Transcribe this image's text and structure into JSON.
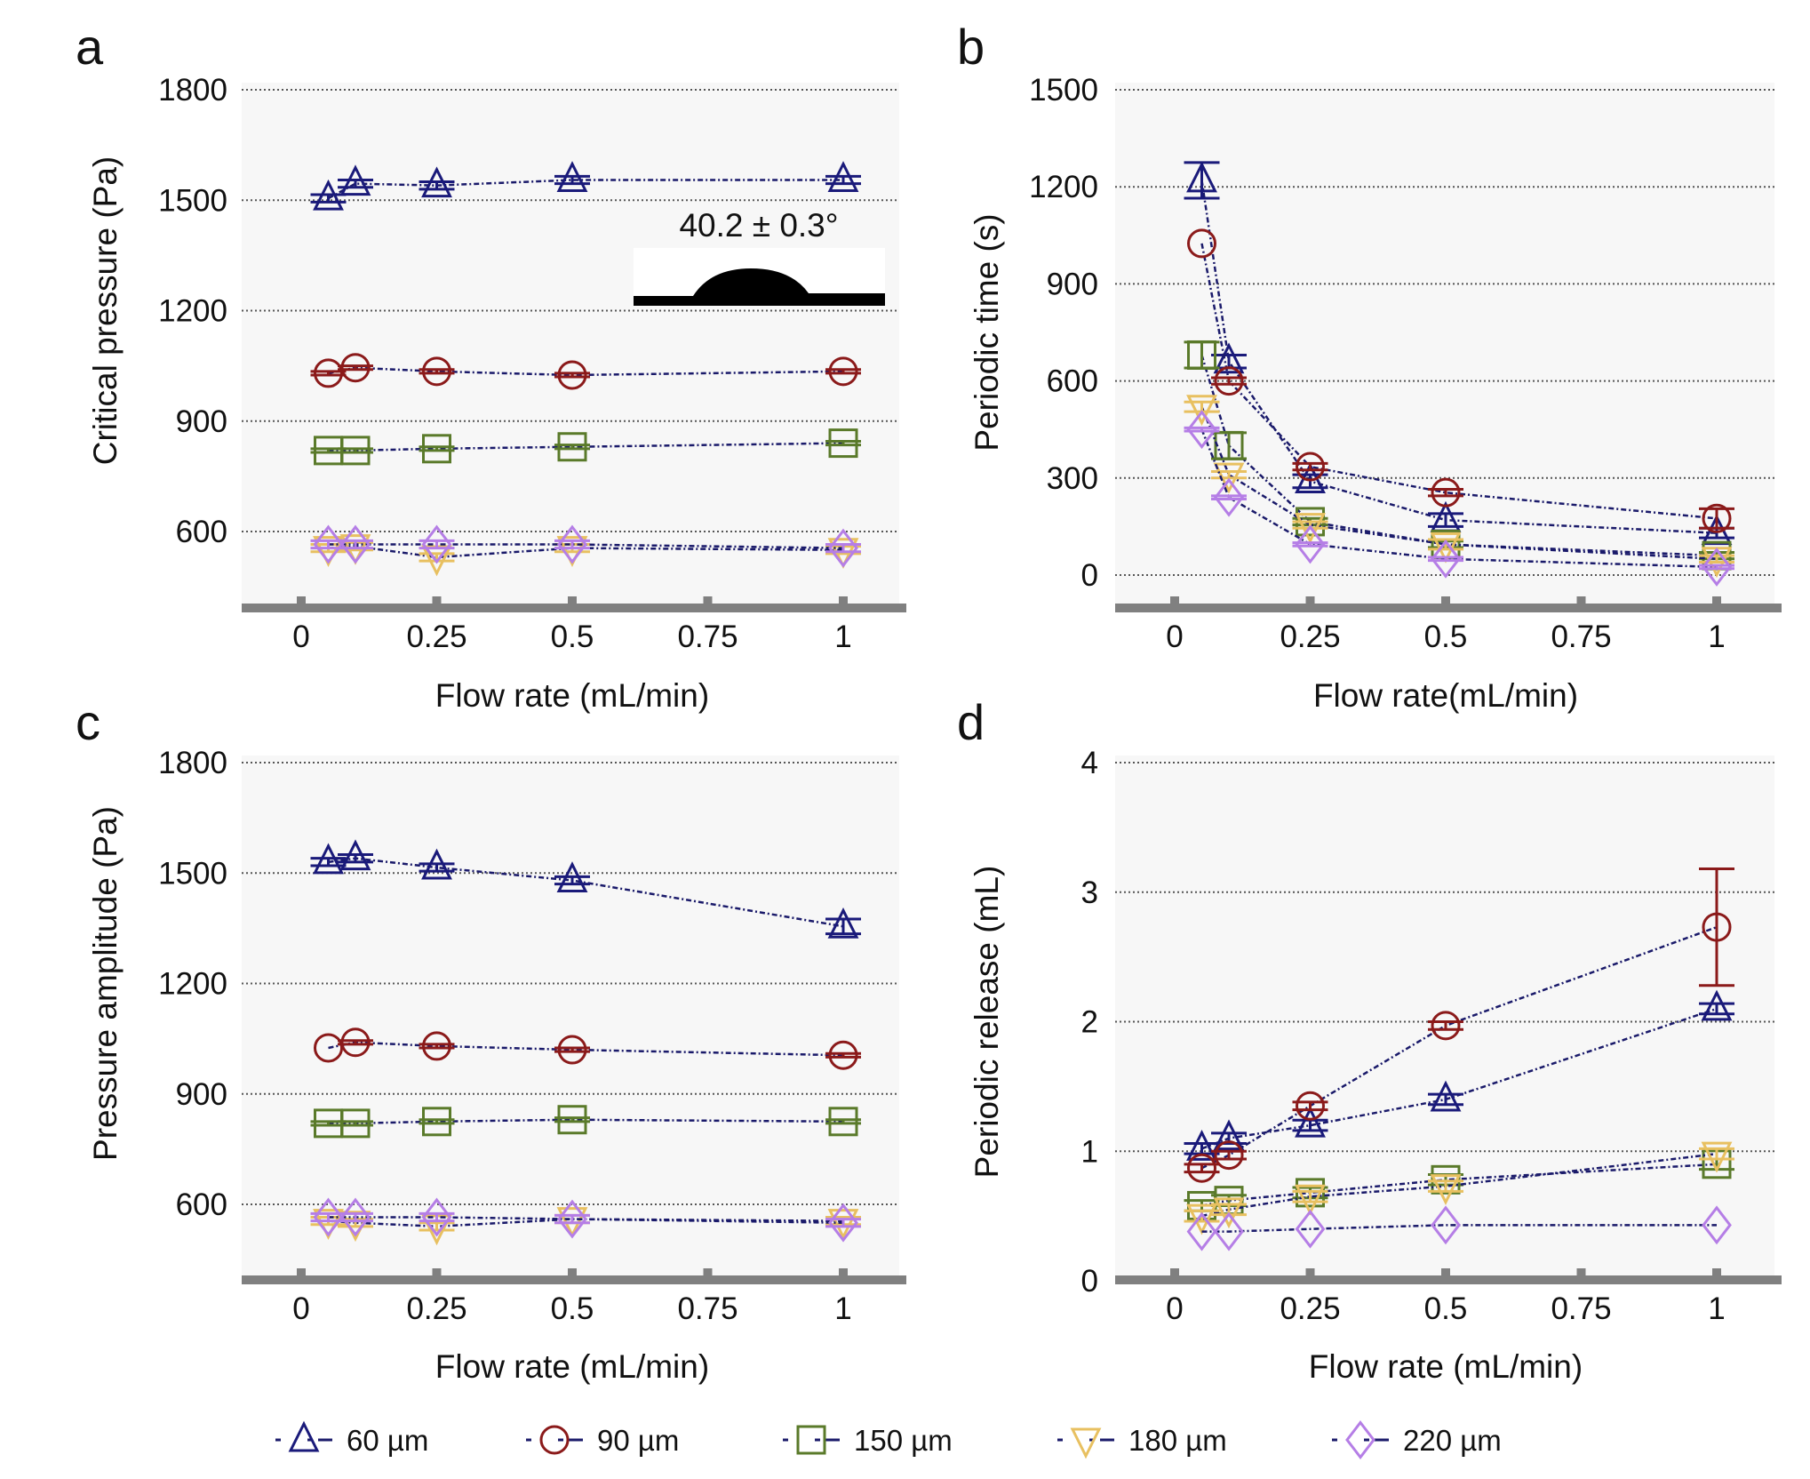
{
  "colors": {
    "60": "#1a1a7a",
    "90": "#8b1a1a",
    "150": "#5a7a2a",
    "180": "#e8c060",
    "220": "#b57ee6",
    "line": "#1a1a6a",
    "axis": "#808080",
    "plot_bg": "#f7f7f7"
  },
  "legend": [
    {
      "label": "60 µm",
      "marker": "triangle-up",
      "color": "#1a1a7a"
    },
    {
      "label": "90 µm",
      "marker": "circle",
      "color": "#8b1a1a"
    },
    {
      "label": "150 µm",
      "marker": "square",
      "color": "#5a7a2a"
    },
    {
      "label": "180 µm",
      "marker": "triangle-down",
      "color": "#e8c060"
    },
    {
      "label": "220 µm",
      "marker": "diamond",
      "color": "#b57ee6"
    }
  ],
  "chart_data": [
    {
      "panel": "a",
      "type": "line",
      "xlabel": "Flow rate (mL/min)",
      "ylabel": "Critical pressure (Pa)",
      "xticks": [
        "0",
        "0.25",
        "0.5",
        "0.75",
        "1"
      ],
      "xtick_values": [
        0,
        0.25,
        0.5,
        0.75,
        1
      ],
      "yticks": [
        "600",
        "900",
        "1200",
        "1500",
        "1800"
      ],
      "ytick_values": [
        600,
        900,
        1200,
        1500,
        1800
      ],
      "annotation": "40.2 ± 0.3°",
      "x": [
        0.05,
        0.1,
        0.25,
        0.5,
        1
      ],
      "series": [
        {
          "name": "60 µm",
          "values": [
            1505,
            1545,
            1540,
            1555,
            1555
          ],
          "err": [
            10,
            10,
            10,
            10,
            10
          ]
        },
        {
          "name": "90 µm",
          "values": [
            1030,
            1045,
            1035,
            1025,
            1035
          ],
          "err": [
            5,
            5,
            5,
            5,
            5
          ]
        },
        {
          "name": "150 µm",
          "values": [
            820,
            820,
            825,
            830,
            840
          ],
          "err": [
            5,
            5,
            5,
            5,
            5
          ]
        },
        {
          "name": "180 µm",
          "values": [
            555,
            560,
            530,
            555,
            550
          ],
          "err": [
            10,
            10,
            10,
            10,
            10
          ]
        },
        {
          "name": "220 µm",
          "values": [
            565,
            565,
            565,
            565,
            555
          ],
          "err": [
            10,
            10,
            10,
            10,
            10
          ]
        }
      ]
    },
    {
      "panel": "b",
      "type": "line",
      "xlabel": "Flow rate(mL/min)",
      "ylabel": "Periodic  time (s)",
      "xticks": [
        "0",
        "0.25",
        "0.5",
        "0.75",
        "1"
      ],
      "xtick_values": [
        0,
        0.25,
        0.5,
        0.75,
        1
      ],
      "yticks": [
        "0",
        "300",
        "600",
        "900",
        "1200",
        "1500"
      ],
      "ytick_values": [
        0,
        300,
        600,
        900,
        1200,
        1500
      ],
      "x": [
        0.05,
        0.1,
        0.25,
        0.5,
        1
      ],
      "series": [
        {
          "name": "60 µm",
          "values": [
            1220,
            660,
            290,
            170,
            130
          ],
          "err": [
            55,
            20,
            20,
            20,
            15
          ]
        },
        {
          "name": "90 µm",
          "values": [
            1025,
            600,
            335,
            255,
            175
          ],
          "err": [
            0,
            10,
            10,
            10,
            30
          ]
        },
        {
          "name": "150 µm",
          "values": [
            680,
            400,
            165,
            95,
            60
          ],
          "err": [
            40,
            40,
            10,
            10,
            10
          ]
        },
        {
          "name": "180 µm",
          "values": [
            520,
            310,
            155,
            95,
            50
          ],
          "err": [
            15,
            10,
            10,
            15,
            10
          ]
        },
        {
          "name": "220 µm",
          "values": [
            450,
            240,
            95,
            50,
            25
          ],
          "err": [
            5,
            5,
            5,
            5,
            5
          ]
        }
      ]
    },
    {
      "panel": "c",
      "type": "line",
      "xlabel": "Flow rate (mL/min)",
      "ylabel": "Pressure amplitude (Pa)",
      "xticks": [
        "0",
        "0.25",
        "0.5",
        "0.75",
        "1"
      ],
      "xtick_values": [
        0,
        0.25,
        0.5,
        0.75,
        1
      ],
      "yticks": [
        "600",
        "900",
        "1200",
        "1500",
        "1800"
      ],
      "ytick_values": [
        600,
        900,
        1200,
        1500,
        1800
      ],
      "x": [
        0.05,
        0.1,
        0.25,
        0.5,
        1
      ],
      "series": [
        {
          "name": "60 µm",
          "values": [
            1530,
            1540,
            1515,
            1480,
            1355
          ],
          "err": [
            10,
            10,
            10,
            10,
            20
          ]
        },
        {
          "name": "90 µm",
          "values": [
            1025,
            1040,
            1030,
            1020,
            1005
          ],
          "err": [
            0,
            5,
            5,
            5,
            5
          ]
        },
        {
          "name": "150 µm",
          "values": [
            820,
            820,
            825,
            830,
            825
          ],
          "err": [
            5,
            5,
            5,
            5,
            5
          ]
        },
        {
          "name": "180 µm",
          "values": [
            555,
            550,
            540,
            560,
            555
          ],
          "err": [
            10,
            10,
            10,
            10,
            10
          ]
        },
        {
          "name": "220 µm",
          "values": [
            565,
            565,
            565,
            560,
            550
          ],
          "err": [
            10,
            10,
            10,
            10,
            10
          ]
        }
      ]
    },
    {
      "panel": "d",
      "type": "line",
      "xlabel": "Flow rate (mL/min)",
      "ylabel": "Periodic release (mL)",
      "xticks": [
        "0",
        "0.25",
        "0.5",
        "0.75",
        "1"
      ],
      "xtick_values": [
        0,
        0.25,
        0.5,
        0.75,
        1
      ],
      "yticks": [
        "0",
        "1",
        "2",
        "3",
        "4"
      ],
      "ytick_values": [
        0,
        1,
        2,
        3,
        4
      ],
      "x": [
        0.05,
        0.1,
        0.25,
        0.5,
        1
      ],
      "series": [
        {
          "name": "60 µm",
          "values": [
            1.02,
            1.1,
            1.2,
            1.4,
            2.1
          ],
          "err": [
            0.04,
            0.04,
            0.04,
            0.04,
            0.04
          ]
        },
        {
          "name": "90 µm",
          "values": [
            0.87,
            0.97,
            1.35,
            1.97,
            2.73
          ],
          "err": [
            0.03,
            0.03,
            0.03,
            0.03,
            0.45
          ]
        },
        {
          "name": "150 µm",
          "values": [
            0.58,
            0.62,
            0.68,
            0.78,
            0.9
          ],
          "err": [
            0.04,
            0.04,
            0.04,
            0.04,
            0.04
          ]
        },
        {
          "name": "180 µm",
          "values": [
            0.5,
            0.55,
            0.65,
            0.73,
            0.98
          ],
          "err": [
            0.04,
            0.04,
            0.04,
            0.04,
            0.04
          ]
        },
        {
          "name": "220 µm",
          "values": [
            0.38,
            0.38,
            0.4,
            0.43,
            0.43
          ],
          "err": [
            0,
            0,
            0,
            0,
            0
          ]
        }
      ]
    }
  ]
}
